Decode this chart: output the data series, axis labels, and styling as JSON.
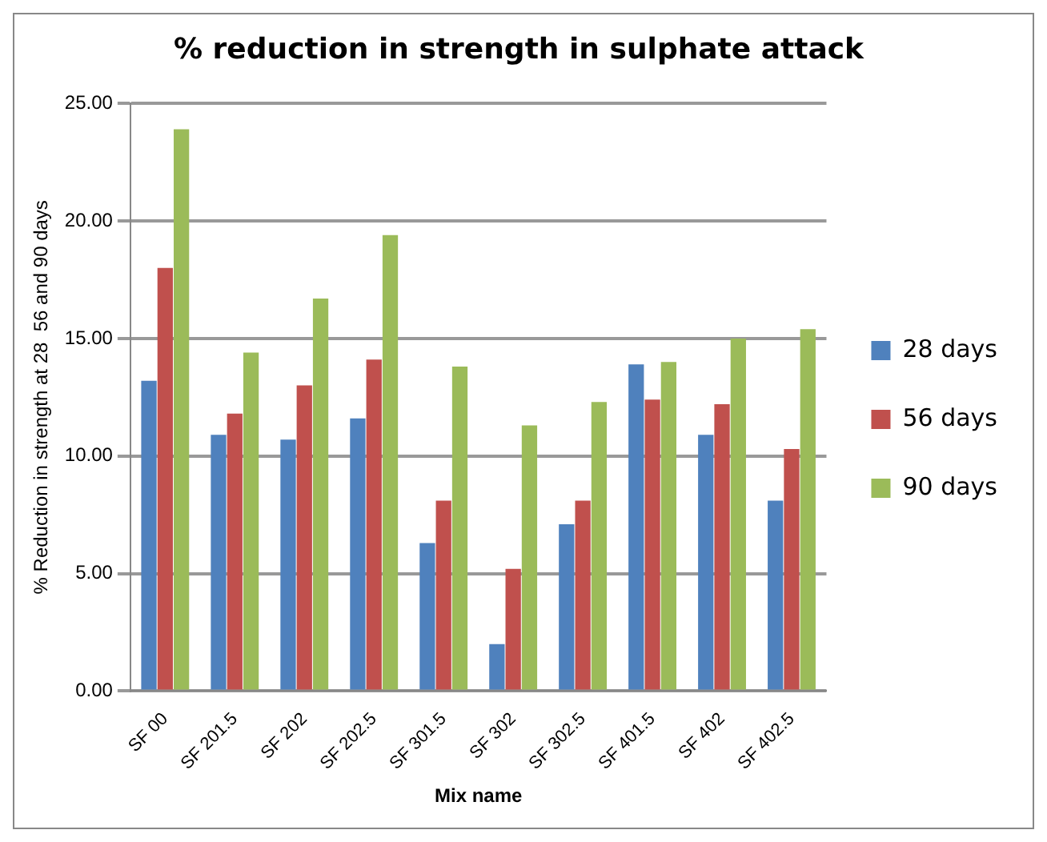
{
  "chart_data": {
    "type": "bar",
    "title": "% reduction in strength in sulphate attack",
    "xlabel": "Mix name",
    "ylabel": "% Reduction in strength at 28  56 and 90 days",
    "categories": [
      "SF 00",
      "SF 201.5",
      "SF 202",
      "SF 202.5",
      "SF 301.5",
      "SF 302",
      "SF 302.5",
      "SF 401.5",
      "SF 402",
      "SF 402.5"
    ],
    "series": [
      {
        "name": "28 days",
        "color": "#4f81bd",
        "values": [
          13.2,
          10.9,
          10.7,
          11.6,
          6.3,
          2.0,
          7.1,
          13.9,
          10.9,
          8.1
        ]
      },
      {
        "name": "56 days",
        "color": "#c0504d",
        "values": [
          18.0,
          11.8,
          13.0,
          14.1,
          8.1,
          5.2,
          8.1,
          12.4,
          12.2,
          10.3
        ]
      },
      {
        "name": "90 days",
        "color": "#9bbb59",
        "values": [
          23.9,
          14.4,
          16.7,
          19.4,
          13.8,
          11.3,
          12.3,
          14.0,
          15.0,
          15.4
        ]
      }
    ],
    "ylim": [
      0,
      25
    ],
    "yticks": [
      {
        "value": 0,
        "label": "0.00"
      },
      {
        "value": 5,
        "label": "5.00"
      },
      {
        "value": 10,
        "label": "10.00"
      },
      {
        "value": 15,
        "label": "15.00"
      },
      {
        "value": 20,
        "label": "20.00"
      },
      {
        "value": 25,
        "label": "25.00"
      }
    ],
    "grid": "y",
    "legend": "right"
  }
}
